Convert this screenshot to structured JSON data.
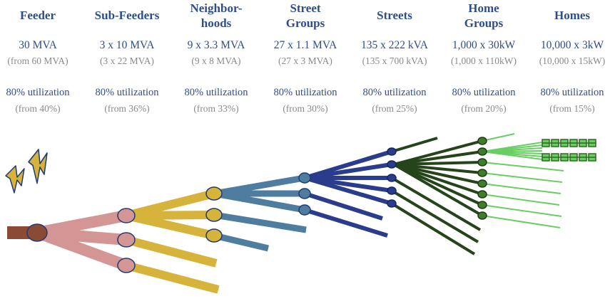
{
  "levels": [
    {
      "name": "Feeder",
      "capacity": "30 MVA",
      "capacity_from": "(from 60 MVA)",
      "utilization": "80% utilization",
      "utilization_from": "(from 40%)"
    },
    {
      "name": "Sub-Feeders",
      "capacity": "3 x 10 MVA",
      "capacity_from": "(3 x 22 MVA)",
      "utilization": "80% utilization",
      "utilization_from": "(from 36%)"
    },
    {
      "name": "Neighbor-\nhoods",
      "capacity": "9 x 3.3 MVA",
      "capacity_from": "(9 x 8 MVA)",
      "utilization": "80% utilization",
      "utilization_from": "(from 33%)"
    },
    {
      "name": "Street\nGroups",
      "capacity": "27 x 1.1 MVA",
      "capacity_from": "(27 x 3 MVA)",
      "utilization": "80% utilization",
      "utilization_from": "(from 30%)"
    },
    {
      "name": "Streets",
      "capacity": "135 x 222 kVA",
      "capacity_from": "(135 x 700 kVA)",
      "utilization": "80% utilization",
      "utilization_from": "(from 25%)"
    },
    {
      "name": "Home\nGroups",
      "capacity": "1,000 x 30kW",
      "capacity_from": "(1,000 x 110kW)",
      "utilization": "80% utilization",
      "utilization_from": "(from 20%)"
    },
    {
      "name": "Homes",
      "capacity": "10,000 x 3kW",
      "capacity_from": "(10,000 x 15kW)",
      "utilization": "80% utilization",
      "utilization_from": "(from 15%)"
    }
  ],
  "colors": {
    "header_text": "#2e4e8a",
    "sub_text": "#8a8a8a",
    "feeder": "#8b4a33",
    "sub_feeder": "#d49595",
    "neighborhood": "#d6b33a",
    "street_group": "#4f7d9f",
    "street": "#2b3c8c",
    "home_group": "#25441a",
    "home": "#6acd63",
    "lightning": "#d6b33a"
  },
  "icons": [
    "lightning-bolt-icon",
    "lightning-bolt-icon"
  ]
}
